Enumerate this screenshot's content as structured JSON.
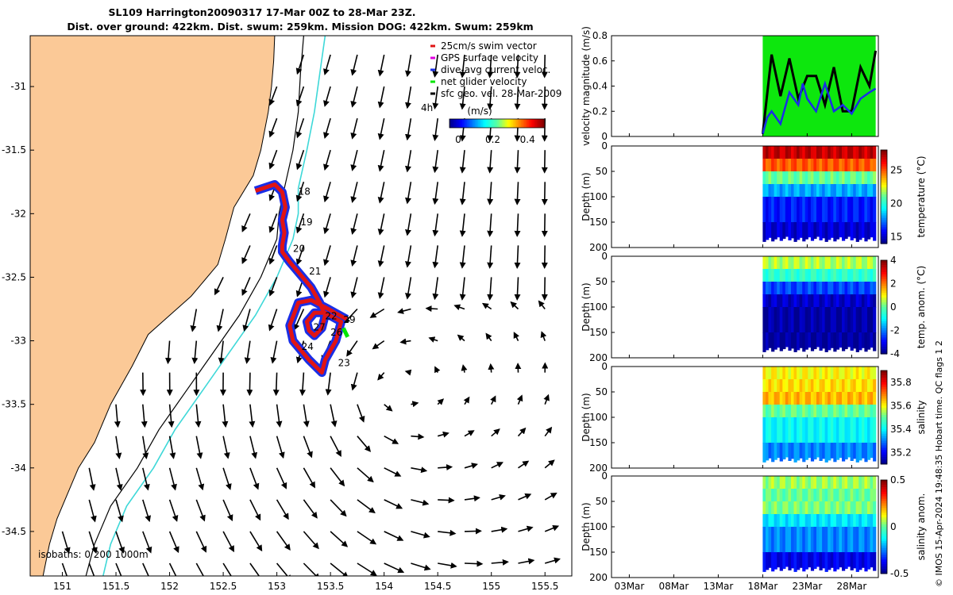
{
  "title_line1": "SL109 Harrington20090317 17-Mar 00Z to 28-Mar 23Z.",
  "title_line2": "Dist. over ground: 422km. Dist. swum: 259km. Mission DOG: 422km. Swum: 259km",
  "side_note": "© IMOS 15-Apr-2024 19:48:35 Hobart time. QC flags 1  2",
  "colors": {
    "land": "#fbc997",
    "track_red": "#e01414",
    "track_blue": "#1a2ee6",
    "green": "#00e600",
    "cyan": "#3ed8d8",
    "gps": "#e000e0"
  },
  "chart_data": [
    {
      "type": "map",
      "x_ticks": [
        "151",
        "151.5",
        "152",
        "152.5",
        "153",
        "153.5",
        "154",
        "154.5",
        "155",
        "155.5"
      ],
      "y_ticks": [
        "-31",
        "-31.5",
        "-32",
        "-32.5",
        "-33",
        "-33.5",
        "-34",
        "-34.5"
      ],
      "xlim": [
        150.7,
        155.75
      ],
      "ylim": [
        -34.85,
        -30.6
      ],
      "legend": [
        {
          "label": "25cm/s swim vector",
          "color": "#e01414"
        },
        {
          "label": "GPS surface velocity",
          "color": "#e000e0"
        },
        {
          "label": "dive-avg current veloc.",
          "color": "#1a2ee6"
        },
        {
          "label": "net glider velocity",
          "color": "#00e600"
        },
        {
          "label": "sfc geo. vel. 28-Mar-2009",
          "color": "#000000"
        }
      ],
      "legend_extra": "4h",
      "colorbar": {
        "label": "(m/s)",
        "ticks": [
          "0",
          "0.2",
          "0.4"
        ],
        "range": [
          -0.05,
          0.5
        ]
      },
      "isobaths_label": "isobaths: 0   200  1000m",
      "day_labels": [
        {
          "text": "18",
          "lon": 153.2,
          "lat": -31.85
        },
        {
          "text": "19",
          "lon": 153.22,
          "lat": -32.09
        },
        {
          "text": "20",
          "lon": 153.15,
          "lat": -32.3
        },
        {
          "text": "21",
          "lon": 153.3,
          "lat": -32.48
        },
        {
          "text": "22",
          "lon": 153.45,
          "lat": -32.83
        },
        {
          "text": "29",
          "lon": 153.62,
          "lat": -32.86
        },
        {
          "text": "27",
          "lon": 153.34,
          "lat": -32.92
        },
        {
          "text": "26",
          "lon": 153.5,
          "lat": -32.96
        },
        {
          "text": "24",
          "lon": 153.23,
          "lat": -33.07
        },
        {
          "text": "23",
          "lon": 153.57,
          "lat": -33.2
        }
      ],
      "track": [
        [
          152.8,
          -31.82
        ],
        [
          152.98,
          -31.77
        ],
        [
          153.05,
          -31.83
        ],
        [
          153.08,
          -31.95
        ],
        [
          153.05,
          -32.05
        ],
        [
          153.07,
          -32.15
        ],
        [
          153.05,
          -32.25
        ],
        [
          153.05,
          -32.3
        ],
        [
          153.12,
          -32.38
        ],
        [
          153.22,
          -32.48
        ],
        [
          153.32,
          -32.58
        ],
        [
          153.4,
          -32.7
        ],
        [
          153.45,
          -32.8
        ],
        [
          153.42,
          -32.9
        ],
        [
          153.35,
          -32.96
        ],
        [
          153.3,
          -32.92
        ],
        [
          153.28,
          -32.85
        ],
        [
          153.35,
          -32.78
        ],
        [
          153.45,
          -32.78
        ],
        [
          153.6,
          -32.85
        ],
        [
          153.55,
          -33.0
        ],
        [
          153.45,
          -33.15
        ],
        [
          153.42,
          -33.25
        ],
        [
          153.3,
          -33.15
        ],
        [
          153.15,
          -33.0
        ],
        [
          153.12,
          -32.88
        ],
        [
          153.2,
          -32.7
        ],
        [
          153.32,
          -32.68
        ],
        [
          153.48,
          -32.75
        ],
        [
          153.65,
          -32.83
        ]
      ],
      "isobath_200": [
        [
          153.25,
          -30.6
        ],
        [
          153.22,
          -30.9
        ],
        [
          153.2,
          -31.2
        ],
        [
          153.15,
          -31.5
        ],
        [
          153.07,
          -31.8
        ],
        [
          153.02,
          -32.0
        ],
        [
          153.0,
          -32.2
        ],
        [
          152.85,
          -32.5
        ],
        [
          152.65,
          -32.8
        ],
        [
          152.4,
          -33.1
        ],
        [
          152.15,
          -33.4
        ],
        [
          151.9,
          -33.7
        ],
        [
          151.7,
          -34.0
        ],
        [
          151.45,
          -34.3
        ],
        [
          151.3,
          -34.6
        ],
        [
          151.22,
          -34.85
        ]
      ],
      "isobath_1000": [
        [
          153.45,
          -30.6
        ],
        [
          153.4,
          -30.9
        ],
        [
          153.35,
          -31.2
        ],
        [
          153.28,
          -31.5
        ],
        [
          153.2,
          -31.8
        ],
        [
          153.2,
          -32.0
        ],
        [
          153.15,
          -32.2
        ],
        [
          153.0,
          -32.5
        ],
        [
          152.8,
          -32.8
        ],
        [
          152.55,
          -33.1
        ],
        [
          152.3,
          -33.4
        ],
        [
          152.05,
          -33.7
        ],
        [
          151.85,
          -34.0
        ],
        [
          151.6,
          -34.3
        ],
        [
          151.45,
          -34.6
        ],
        [
          151.38,
          -34.85
        ]
      ],
      "coast": [
        [
          152.98,
          -30.6
        ],
        [
          152.97,
          -30.8
        ],
        [
          152.95,
          -31.0
        ],
        [
          152.92,
          -31.2
        ],
        [
          152.85,
          -31.5
        ],
        [
          152.78,
          -31.7
        ],
        [
          152.6,
          -31.95
        ],
        [
          152.52,
          -32.2
        ],
        [
          152.45,
          -32.4
        ],
        [
          152.2,
          -32.65
        ],
        [
          152.0,
          -32.8
        ],
        [
          151.8,
          -32.95
        ],
        [
          151.65,
          -33.2
        ],
        [
          151.45,
          -33.5
        ],
        [
          151.3,
          -33.8
        ],
        [
          151.15,
          -34.0
        ],
        [
          151.05,
          -34.2
        ],
        [
          150.95,
          -34.4
        ],
        [
          150.88,
          -34.6
        ],
        [
          150.82,
          -34.85
        ]
      ]
    },
    {
      "type": "line",
      "ylabel": "velocity magnitude (m/s)",
      "ylim": [
        0,
        0.8
      ],
      "y_ticks": [
        "0",
        "0.2",
        "0.4",
        "0.6",
        "0.8"
      ],
      "x_ticks": [
        "03Mar",
        "08Mar",
        "13Mar",
        "18Mar",
        "23Mar",
        "28Mar"
      ],
      "x_day_range": [
        0,
        30
      ],
      "x_tick_days": [
        2,
        7,
        12,
        17,
        22,
        27
      ],
      "series": [
        {
          "color": "#000000",
          "x": [
            17,
            18,
            19,
            20,
            21,
            22,
            23,
            24,
            25,
            26,
            27,
            28,
            29,
            29.7
          ],
          "y": [
            0.02,
            0.65,
            0.32,
            0.62,
            0.3,
            0.48,
            0.48,
            0.25,
            0.55,
            0.2,
            0.2,
            0.55,
            0.4,
            0.68
          ]
        },
        {
          "color": "#1a2ee6",
          "x": [
            17,
            17.5,
            18,
            19,
            20,
            21,
            21.5,
            22,
            23,
            24,
            25,
            26,
            27,
            28,
            29,
            29.7
          ],
          "y": [
            0.02,
            0.15,
            0.2,
            0.1,
            0.35,
            0.25,
            0.42,
            0.3,
            0.2,
            0.42,
            0.2,
            0.25,
            0.18,
            0.3,
            0.35,
            0.38
          ]
        }
      ],
      "band": {
        "color": "#00e600",
        "x": [
          17,
          29.7
        ],
        "low": 0.0,
        "high": 0.8
      }
    },
    {
      "type": "heatmap",
      "ylabel": "Depth (m)",
      "clabel": "temperature (°C)",
      "y_ticks": [
        "0",
        "50",
        "100",
        "150",
        "200"
      ],
      "c_ticks": [
        "15",
        "20",
        "25"
      ],
      "c_tick_values": [
        15,
        20,
        25
      ],
      "crange": [
        14,
        28
      ],
      "x_ticks": [
        "03Mar",
        "08Mar",
        "13Mar",
        "18Mar",
        "23Mar",
        "28Mar"
      ],
      "x_day_range": [
        0,
        30
      ],
      "data_days": [
        17,
        29.7
      ],
      "depths": [
        0,
        25,
        50,
        75,
        100,
        150,
        190
      ],
      "values": [
        27,
        25,
        21,
        18,
        16,
        15,
        14.5
      ]
    },
    {
      "type": "heatmap",
      "ylabel": "Depth (m)",
      "clabel": "temp. anom. (°C)",
      "y_ticks": [
        "0",
        "50",
        "100",
        "150",
        "200"
      ],
      "c_ticks": [
        "4",
        "2",
        "0",
        "-2",
        "-4"
      ],
      "c_tick_values": [
        4,
        2,
        0,
        -2,
        -4
      ],
      "crange": [
        -4,
        4
      ],
      "x_ticks": [
        "03Mar",
        "08Mar",
        "13Mar",
        "18Mar",
        "23Mar",
        "28Mar"
      ],
      "x_day_range": [
        0,
        30
      ],
      "data_days": [
        17,
        29.7
      ],
      "depths": [
        0,
        25,
        50,
        75,
        100,
        150,
        190
      ],
      "values": [
        0.5,
        -0.5,
        -2.5,
        -3.5,
        -3.8,
        -3.9,
        -4
      ]
    },
    {
      "type": "heatmap",
      "ylabel": "Depth (m)",
      "clabel": "salinity",
      "y_ticks": [
        "0",
        "50",
        "100",
        "150",
        "200"
      ],
      "c_ticks": [
        "35.8",
        "35.6",
        "35.4",
        "35.2"
      ],
      "c_tick_values": [
        35.8,
        35.6,
        35.4,
        35.2
      ],
      "crange": [
        35.1,
        35.9
      ],
      "x_ticks": [
        "03Mar",
        "08Mar",
        "13Mar",
        "18Mar",
        "23Mar",
        "28Mar"
      ],
      "x_day_range": [
        0,
        30
      ],
      "data_days": [
        17,
        29.7
      ],
      "depths": [
        0,
        25,
        50,
        75,
        100,
        150,
        190
      ],
      "values": [
        35.6,
        35.62,
        35.65,
        35.5,
        35.4,
        35.3,
        35.2
      ]
    },
    {
      "type": "heatmap",
      "ylabel": "Depth (m)",
      "clabel": "salinity anom.",
      "y_ticks": [
        "0",
        "50",
        "100",
        "150",
        "200"
      ],
      "c_ticks": [
        "0.5",
        "0",
        "-0.5"
      ],
      "c_tick_values": [
        0.5,
        0,
        -0.5
      ],
      "crange": [
        -0.5,
        0.5
      ],
      "x_ticks": [
        "03Mar",
        "08Mar",
        "13Mar",
        "18Mar",
        "23Mar",
        "28Mar"
      ],
      "x_day_range": [
        0,
        30
      ],
      "data_days": [
        17,
        29.7
      ],
      "depths": [
        0,
        25,
        50,
        75,
        100,
        150,
        190
      ],
      "values": [
        0.05,
        0.0,
        0.02,
        -0.15,
        -0.25,
        -0.4,
        -0.5
      ]
    }
  ]
}
